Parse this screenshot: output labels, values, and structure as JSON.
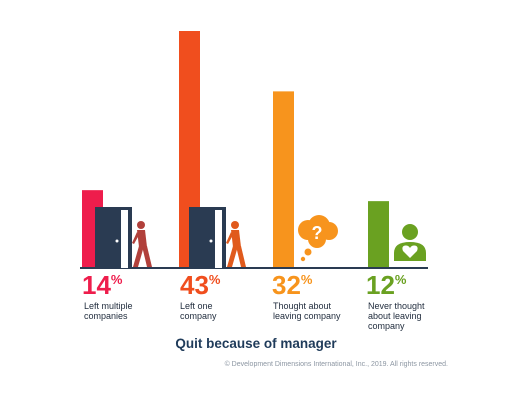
{
  "chart_data": {
    "type": "bar",
    "title": "Quit because of manager",
    "categories": [
      "Left multiple companies",
      "Left one company",
      "Thought about leaving company",
      "Never thought about leaving company"
    ],
    "category_label_lines": [
      [
        "Left multiple",
        "companies"
      ],
      [
        "Left one",
        "company"
      ],
      [
        "Thought about",
        "leaving company"
      ],
      [
        "Never thought",
        "about leaving",
        "company"
      ]
    ],
    "values": [
      14,
      43,
      32,
      12
    ],
    "value_labels": [
      "14",
      "43",
      "32",
      "12"
    ],
    "value_unit": "%",
    "colors": [
      "#ee1d4c",
      "#f04e1e",
      "#f7941d",
      "#6aa121"
    ],
    "ylim": [
      0,
      43
    ],
    "grid": false,
    "legend": "none",
    "icons": [
      "door-walking-person-icon",
      "door-walking-person-icon",
      "thought-bubble-question-icon",
      "person-heart-icon"
    ]
  },
  "footer": {
    "copyright": "© Development Dimensions International, Inc., 2019. All rights reserved."
  }
}
